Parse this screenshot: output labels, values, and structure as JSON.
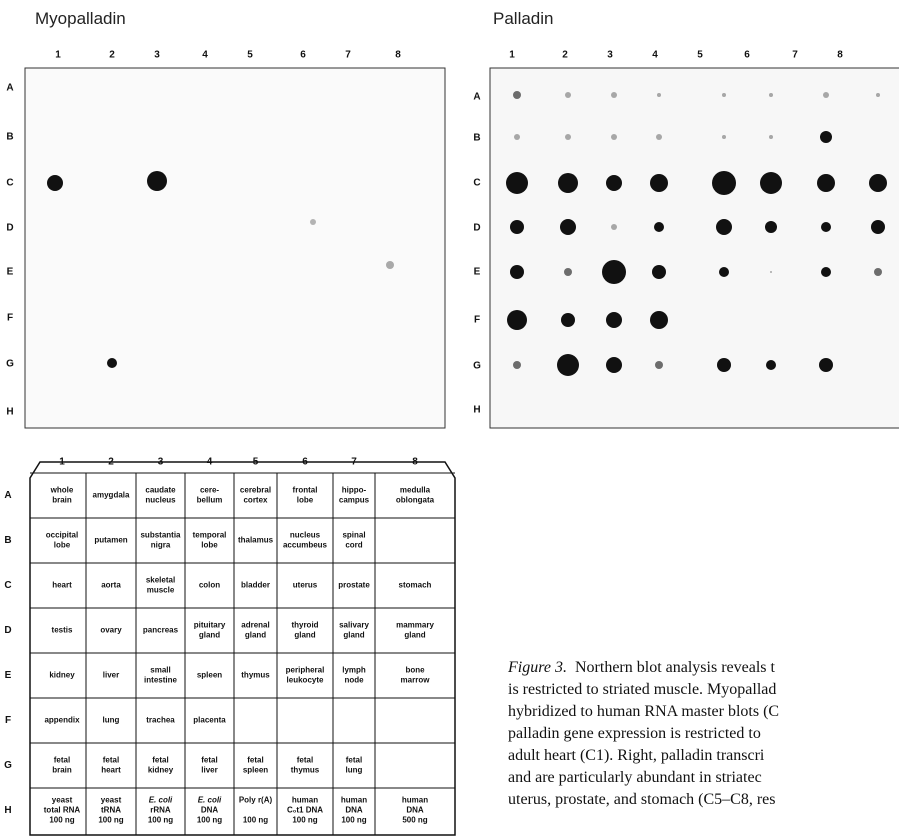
{
  "panels": [
    {
      "title": "Myopalladin"
    },
    {
      "title": "Palladin"
    }
  ],
  "columns": [
    "1",
    "2",
    "3",
    "4",
    "5",
    "6",
    "7",
    "8"
  ],
  "rows": [
    "A",
    "B",
    "C",
    "D",
    "E",
    "F",
    "G",
    "H"
  ],
  "table": {
    "columns": [
      "1",
      "2",
      "3",
      "4",
      "5",
      "6",
      "7",
      "8"
    ],
    "rows": [
      {
        "label": "A",
        "cells": [
          [
            "whole",
            "brain"
          ],
          [
            "amygdala"
          ],
          [
            "caudate",
            "nucleus"
          ],
          [
            "cere-",
            "bellum"
          ],
          [
            "cerebral",
            "cortex"
          ],
          [
            "frontal",
            "lobe"
          ],
          [
            "hippo-",
            "campus"
          ],
          [
            "medulla",
            "oblongata"
          ]
        ]
      },
      {
        "label": "B",
        "cells": [
          [
            "occipital",
            "lobe"
          ],
          [
            "putamen"
          ],
          [
            "substantia",
            "nigra"
          ],
          [
            "temporal",
            "lobe"
          ],
          [
            "thalamus"
          ],
          [
            "nucleus",
            "accumbeus"
          ],
          [
            "spinal",
            "cord"
          ],
          null
        ]
      },
      {
        "label": "C",
        "cells": [
          [
            "heart"
          ],
          [
            "aorta"
          ],
          [
            "skeletal",
            "muscle"
          ],
          [
            "colon"
          ],
          [
            "bladder"
          ],
          [
            "uterus"
          ],
          [
            "prostate"
          ],
          [
            "stomach"
          ]
        ]
      },
      {
        "label": "D",
        "cells": [
          [
            "testis"
          ],
          [
            "ovary"
          ],
          [
            "pancreas"
          ],
          [
            "pituitary",
            "gland"
          ],
          [
            "adrenal",
            "gland"
          ],
          [
            "thyroid",
            "gland"
          ],
          [
            "salivary",
            "gland"
          ],
          [
            "mammary",
            "gland"
          ]
        ]
      },
      {
        "label": "E",
        "cells": [
          [
            "kidney"
          ],
          [
            "liver"
          ],
          [
            "small",
            "intestine"
          ],
          [
            "spleen"
          ],
          [
            "thymus"
          ],
          [
            "peripheral",
            "leukocyte"
          ],
          [
            "lymph",
            "node"
          ],
          [
            "bone",
            "marrow"
          ]
        ]
      },
      {
        "label": "F",
        "cells": [
          [
            "appendix"
          ],
          [
            "lung"
          ],
          [
            "trachea"
          ],
          [
            "placenta"
          ],
          null,
          null,
          null,
          null
        ]
      },
      {
        "label": "G",
        "cells": [
          [
            "fetal",
            "brain"
          ],
          [
            "fetal",
            "heart"
          ],
          [
            "fetal",
            "kidney"
          ],
          [
            "fetal",
            "liver"
          ],
          [
            "fetal",
            "spleen"
          ],
          [
            "fetal",
            "thymus"
          ],
          [
            "fetal",
            "lung"
          ],
          null
        ]
      },
      {
        "label": "H",
        "cells": [
          [
            "yeast",
            "total RNA",
            "100 ng"
          ],
          [
            "yeast",
            "tRNA",
            "100 ng"
          ],
          [
            "E. coli",
            "rRNA",
            "100 ng"
          ],
          [
            "E. coli",
            "DNA",
            "100 ng"
          ],
          [
            "Poly r(A)",
            "",
            "100 ng"
          ],
          [
            "human",
            "C₀t1 DNA",
            "100 ng"
          ],
          [
            "human",
            "DNA",
            "100 ng"
          ],
          [
            "human",
            "DNA",
            "500 ng"
          ]
        ]
      }
    ]
  },
  "caption": {
    "label": "Figure 3.",
    "lines": [
      "Northern blot analysis reveals t",
      "is restricted to striated muscle. Myopallad",
      "hybridized to human RNA master blots (C",
      "palladin gene expression is restricted to",
      "adult heart (C1). Right, palladin transcri",
      "and are particularly abundant in striatec",
      "uterus, prostate, and stomach (C5–C8, res"
    ]
  }
}
